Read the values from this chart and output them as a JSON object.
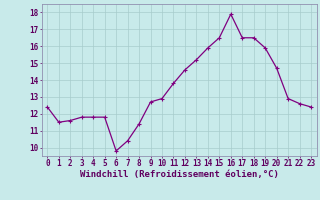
{
  "x": [
    0,
    1,
    2,
    3,
    4,
    5,
    6,
    7,
    8,
    9,
    10,
    11,
    12,
    13,
    14,
    15,
    16,
    17,
    18,
    19,
    20,
    21,
    22,
    23
  ],
  "y": [
    12.4,
    11.5,
    11.6,
    11.8,
    11.8,
    11.8,
    9.8,
    10.4,
    11.4,
    12.7,
    12.9,
    13.8,
    14.6,
    15.2,
    15.9,
    16.5,
    17.9,
    16.5,
    16.5,
    15.9,
    14.7,
    12.9,
    12.6,
    12.4
  ],
  "line_color": "#800080",
  "marker": "P",
  "marker_size": 2.5,
  "line_width": 0.9,
  "bg_color": "#c8eaea",
  "grid_color": "#a8cccc",
  "xlabel": "Windchill (Refroidissement éolien,°C)",
  "ylim": [
    9.5,
    18.5
  ],
  "yticks": [
    10,
    11,
    12,
    13,
    14,
    15,
    16,
    17,
    18
  ],
  "xticks": [
    0,
    1,
    2,
    3,
    4,
    5,
    6,
    7,
    8,
    9,
    10,
    11,
    12,
    13,
    14,
    15,
    16,
    17,
    18,
    19,
    20,
    21,
    22,
    23
  ],
  "tick_fontsize": 5.5,
  "xlabel_fontsize": 6.5
}
